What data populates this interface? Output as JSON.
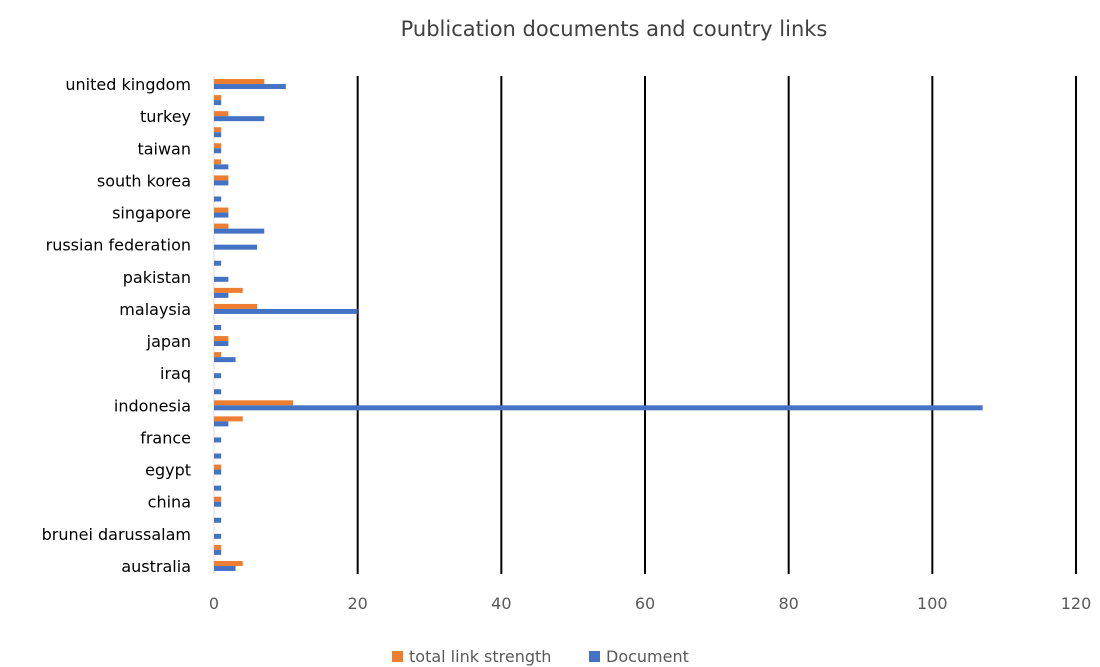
{
  "chart_data": {
    "type": "bar",
    "orientation": "horizontal",
    "title": "Publication documents and country links",
    "xlabel": "",
    "ylabel": "",
    "xlim": [
      0,
      120
    ],
    "x_ticks": [
      0,
      20,
      40,
      60,
      80,
      100,
      120
    ],
    "grid": true,
    "legend_position": "bottom",
    "categories": [
      "australia",
      "",
      "brunei darussalam",
      "",
      "china",
      "",
      "egypt",
      "",
      "france",
      "",
      "indonesia",
      "",
      "iraq",
      "",
      "japan",
      "",
      "malaysia",
      "",
      "pakistan",
      "",
      "russian federation",
      "",
      "singapore",
      "",
      "south korea",
      "",
      "taiwan",
      "",
      "turkey",
      "",
      "united kingdom"
    ],
    "series": [
      {
        "name": "total link strength",
        "color": "#ED7D31",
        "values": [
          4,
          1,
          0,
          0,
          1,
          0,
          1,
          0,
          0,
          4,
          11,
          0,
          0,
          1,
          2,
          0,
          6,
          4,
          0,
          0,
          0,
          2,
          2,
          0,
          2,
          1,
          1,
          1,
          2,
          1,
          7
        ]
      },
      {
        "name": "Document",
        "color": "#4472C4",
        "values": [
          3,
          1,
          1,
          1,
          1,
          1,
          1,
          1,
          1,
          2,
          107,
          1,
          1,
          3,
          2,
          1,
          20,
          2,
          2,
          1,
          6,
          7,
          2,
          1,
          2,
          2,
          1,
          1,
          7,
          1,
          10
        ]
      }
    ]
  }
}
